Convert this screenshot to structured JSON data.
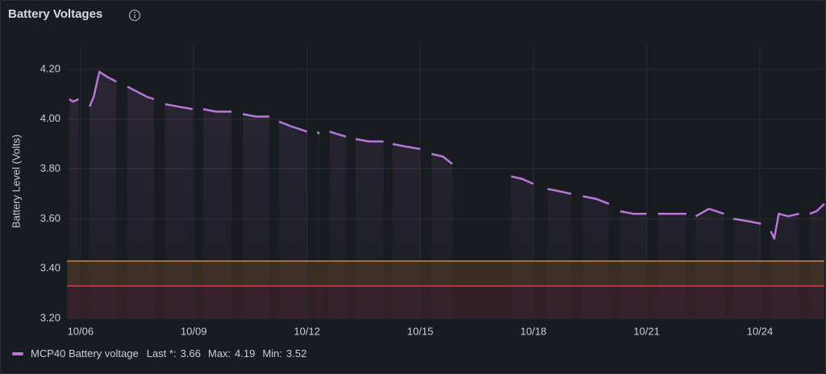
{
  "chart_data": {
    "type": "line",
    "title": "Battery Voltages",
    "y_label": "Battery Level (Volts)",
    "xlim": [
      5.64,
      25.71
    ],
    "xticks": [
      {
        "value": 6,
        "label": "10/06"
      },
      {
        "value": 9,
        "label": "10/09"
      },
      {
        "value": 12,
        "label": "10/12"
      },
      {
        "value": 15,
        "label": "10/15"
      },
      {
        "value": 18,
        "label": "10/18"
      },
      {
        "value": 21,
        "label": "10/21"
      },
      {
        "value": 24,
        "label": "10/24"
      }
    ],
    "ylim": [
      3.2,
      4.3
    ],
    "yticks": [
      {
        "value": 3.2,
        "label": "3.20"
      },
      {
        "value": 3.4,
        "label": "3.40"
      },
      {
        "value": 3.6,
        "label": "3.60"
      },
      {
        "value": 3.8,
        "label": "3.80"
      },
      {
        "value": 4.0,
        "label": "4.00"
      },
      {
        "value": 4.2,
        "label": "4.20"
      }
    ],
    "grid": true,
    "thresholds": [
      {
        "value": 3.43,
        "color": "#ff9830"
      },
      {
        "value": 3.33,
        "color": "#f2495c"
      }
    ],
    "x": [
      5.7,
      5.8,
      5.95,
      6.1,
      6.24,
      6.35,
      6.5,
      6.7,
      6.95,
      7.1,
      7.24,
      7.5,
      7.75,
      7.95,
      8.1,
      8.24,
      8.6,
      8.97,
      9.1,
      9.25,
      9.6,
      10.0,
      10.15,
      10.3,
      10.65,
      11.0,
      11.1,
      11.26,
      11.6,
      12.0,
      12.15,
      12.28,
      12.32,
      12.45,
      12.6,
      12.8,
      13.03,
      13.15,
      13.29,
      13.65,
      14.03,
      14.15,
      14.27,
      14.6,
      15.0,
      15.15,
      15.3,
      15.6,
      15.85,
      16.6,
      17.41,
      17.7,
      18.0,
      18.2,
      18.37,
      18.7,
      19.0,
      19.15,
      19.31,
      19.65,
      20.0,
      20.15,
      20.3,
      20.65,
      21.0,
      21.15,
      21.3,
      21.7,
      22.05,
      22.2,
      22.3,
      22.65,
      23.05,
      23.2,
      23.3,
      23.7,
      24.03,
      24.15,
      24.29,
      24.38,
      24.5,
      24.75,
      25.04,
      25.2,
      25.32,
      25.5,
      25.71
    ],
    "series": [
      {
        "name": "MCP40 Battery voltage",
        "color": "#b877d9",
        "values": [
          4.08,
          4.07,
          4.08,
          null,
          4.05,
          4.09,
          4.19,
          4.17,
          4.15,
          null,
          4.13,
          4.11,
          4.09,
          4.08,
          null,
          4.06,
          4.05,
          4.04,
          null,
          4.04,
          4.03,
          4.03,
          null,
          4.02,
          4.01,
          4.01,
          null,
          3.99,
          3.97,
          3.95,
          null,
          3.95,
          3.94,
          null,
          3.95,
          3.94,
          3.93,
          null,
          3.92,
          3.91,
          3.91,
          null,
          3.9,
          3.89,
          3.88,
          null,
          3.86,
          3.85,
          3.82,
          null,
          3.77,
          3.76,
          3.74,
          null,
          3.72,
          3.71,
          3.7,
          null,
          3.69,
          3.68,
          3.66,
          null,
          3.63,
          3.62,
          3.62,
          null,
          3.62,
          3.62,
          3.62,
          null,
          3.61,
          3.64,
          3.62,
          null,
          3.6,
          3.59,
          3.58,
          null,
          3.55,
          3.52,
          3.62,
          3.61,
          3.62,
          null,
          3.62,
          3.63,
          3.66
        ]
      }
    ],
    "legend_stats": [
      {
        "label": "Last *:",
        "value": 3.66
      },
      {
        "label": "Max:",
        "value": 4.19
      },
      {
        "label": "Min:",
        "value": 3.52
      }
    ]
  }
}
